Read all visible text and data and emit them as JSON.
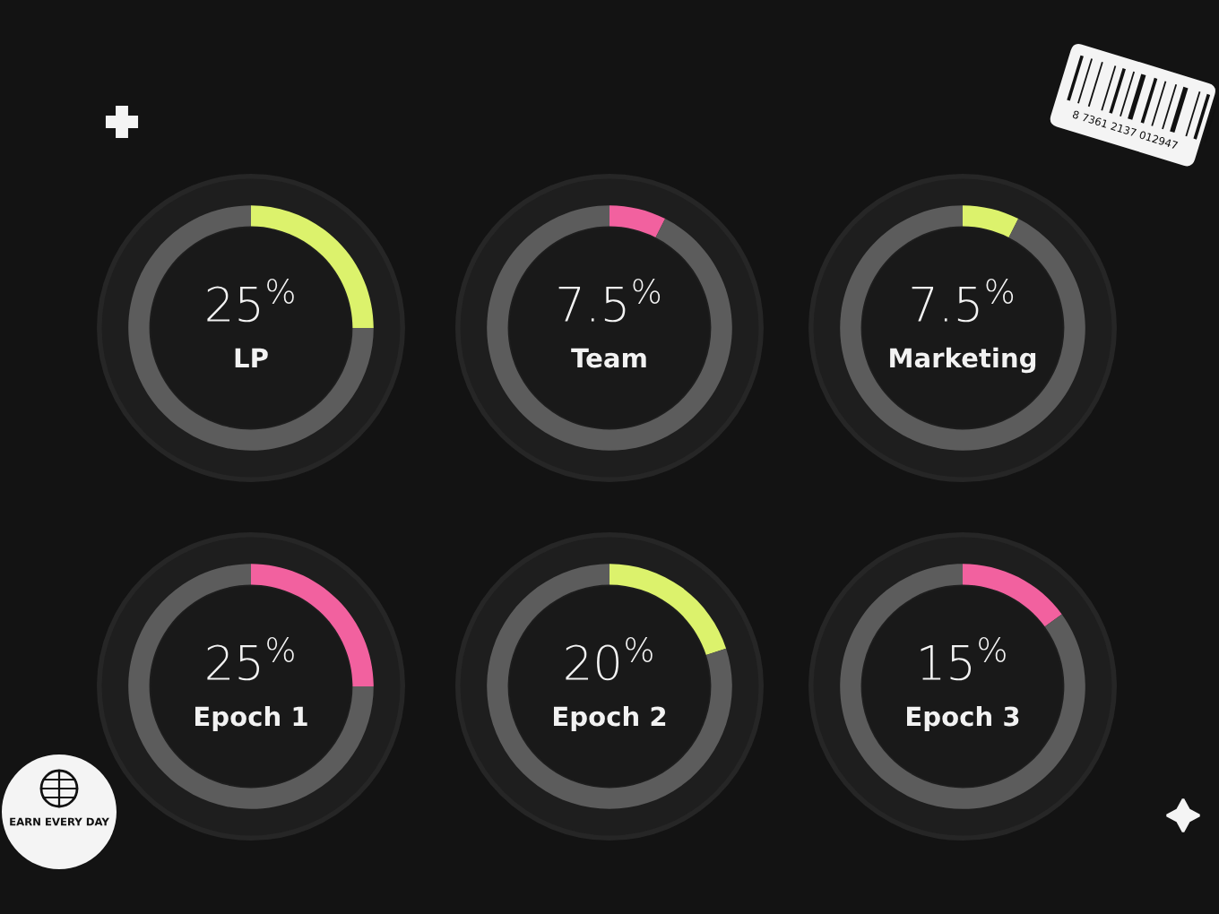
{
  "chart_data": [
    {
      "type": "donut",
      "title": "LP",
      "categories": [
        null,
        null
      ],
      "values": [
        25,
        75
      ],
      "colors": [
        "#dcf26c",
        "#5c5c5c"
      ],
      "value_labels": [
        "25$^{%}$",
        null
      ]
    },
    {
      "type": "donut",
      "title": "Team",
      "categories": [
        null,
        null
      ],
      "values": [
        7.5,
        92.5
      ],
      "colors": [
        "#f2619f",
        "#5c5c5c"
      ],
      "value_labels": [
        "7.5$^{%}$",
        null
      ]
    },
    {
      "type": "donut",
      "title": "Marketing",
      "categories": [
        null,
        null
      ],
      "values": [
        7.5,
        92.5
      ],
      "colors": [
        "#dcf26c",
        "#5c5c5c"
      ],
      "value_labels": [
        "7.5$^{%}$",
        null
      ]
    },
    {
      "type": "donut",
      "title": "Epoch 1",
      "categories": [
        null,
        null
      ],
      "values": [
        25,
        75
      ],
      "colors": [
        "#f2619f",
        "#5c5c5c"
      ],
      "value_labels": [
        "25$^{%}$",
        null
      ]
    },
    {
      "type": "donut",
      "title": "Epoch 2",
      "categories": [
        null,
        null
      ],
      "values": [
        20,
        80
      ],
      "colors": [
        "#dcf26c",
        "#5c5c5c"
      ],
      "value_labels": [
        "20$^{%}$",
        null
      ]
    },
    {
      "type": "donut",
      "title": "Epoch 3",
      "categories": [
        null,
        null
      ],
      "values": [
        15,
        85
      ],
      "colors": [
        "#f2619f",
        "#5c5c5c"
      ],
      "value_labels": [
        "15$^{%}$",
        null
      ]
    },
    {
      "type": "other",
      "annotations": [
        "EARN EVERY DAY",
        "8 7361 2137 012947"
      ]
    }
  ]
}
